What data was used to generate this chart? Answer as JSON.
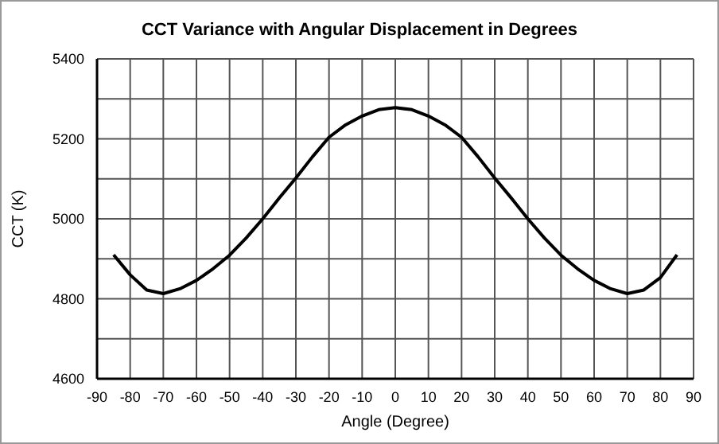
{
  "chart_data": {
    "type": "line",
    "title": "CCT Variance with Angular Displacement in Degrees",
    "xlabel": "Angle (Degree)",
    "ylabel": "CCT (K)",
    "x": [
      -85,
      -80,
      -75,
      -70,
      -65,
      -60,
      -55,
      -50,
      -45,
      -40,
      -35,
      -30,
      -25,
      -20,
      -15,
      -10,
      -5,
      0,
      5,
      10,
      15,
      20,
      25,
      30,
      35,
      40,
      45,
      50,
      55,
      60,
      65,
      70,
      75,
      80,
      85
    ],
    "series": [
      {
        "color": "#000000",
        "values": [
          4910,
          4860,
          4822,
          4813,
          4825,
          4846,
          4875,
          4909,
          4952,
          5000,
          5052,
          5102,
          5155,
          5204,
          5235,
          5257,
          5273,
          5278,
          5273,
          5257,
          5235,
          5204,
          5155,
          5102,
          5052,
          5000,
          4952,
          4909,
          4875,
          4846,
          4825,
          4813,
          4822,
          4853,
          4910
        ]
      }
    ],
    "xlim": [
      -90,
      90
    ],
    "xticks": [
      -90,
      -80,
      -70,
      -60,
      -50,
      -40,
      -30,
      -20,
      -10,
      0,
      10,
      20,
      30,
      40,
      50,
      60,
      70,
      80,
      90
    ],
    "ylim": [
      4600,
      5400
    ],
    "yticks": [
      4600,
      {
        "value": 4700,
        "label": null
      },
      4800,
      {
        "value": 4900,
        "label": null
      },
      5000,
      {
        "value": 5100,
        "label": null
      },
      5200,
      {
        "value": 5300,
        "label": null
      },
      5400
    ],
    "grid": true,
    "marker": "none",
    "line_style": "solid"
  }
}
